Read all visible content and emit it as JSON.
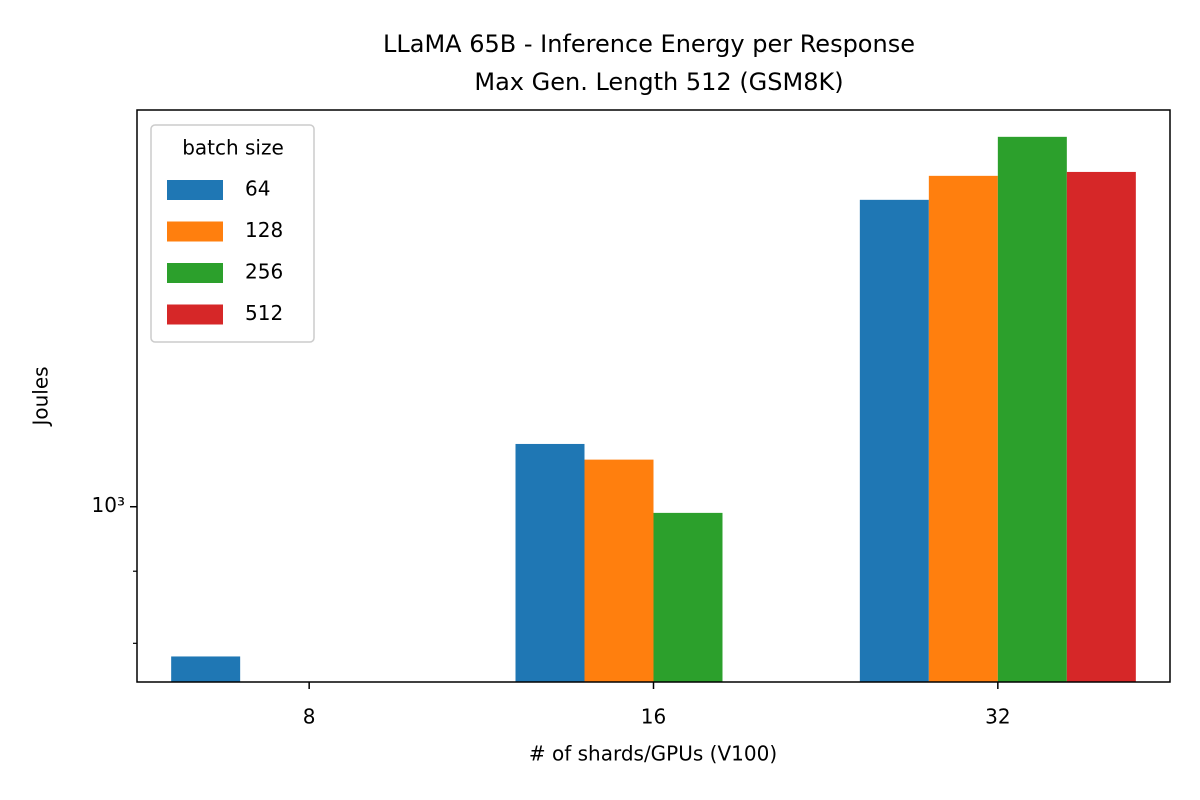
{
  "chart_data": {
    "type": "bar",
    "title": "LLaMA 65B - Inference Energy per Response",
    "subtitle": "Max Gen. Length 512 (GSM8K)",
    "x_label": "# of shards/GPUs (V100)",
    "y_label": "Joules",
    "categories": [
      "8",
      "16",
      "32"
    ],
    "legend_title": "batch size",
    "legend_position": "upper left",
    "log_scale_y": true,
    "series": [
      {
        "name": "64",
        "color": "#1f77b4",
        "values": [
          783,
          1108,
          1651
        ]
      },
      {
        "name": "128",
        "color": "#ff7f0e",
        "values": [
          null,
          1080,
          1717
        ]
      },
      {
        "name": "256",
        "color": "#2ca02c",
        "values": [
          null,
          990,
          1830
        ]
      },
      {
        "name": "512",
        "color": "#d62728",
        "values": [
          null,
          null,
          1728
        ]
      }
    ],
    "ylim": [
      751,
      1912
    ],
    "yticks": [
      {
        "value": 1000,
        "label": "10³"
      }
    ],
    "minor_yticks": [
      800,
      900
    ]
  }
}
